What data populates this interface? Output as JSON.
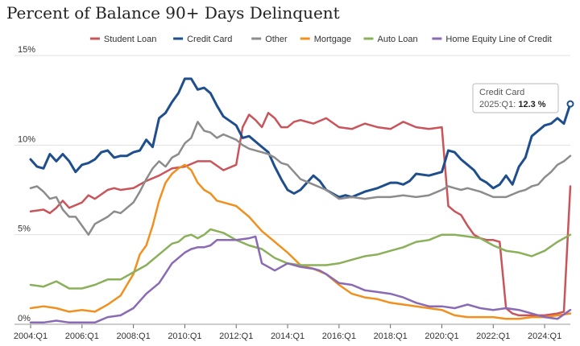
{
  "chart_data": {
    "type": "line",
    "title": "Percent of Balance 90+ Days Delinquent",
    "ylim": [
      0,
      15
    ],
    "y_ticks": [
      {
        "value": 15,
        "label": "15%"
      },
      {
        "value": 10,
        "label": "10%"
      },
      {
        "value": 5,
        "label": "5%"
      },
      {
        "value": 0,
        "label": "0%"
      }
    ],
    "x_start": 2004.0,
    "x_end": 2025.0,
    "x_ticks": [
      {
        "value": 2004,
        "label": "2004:Q1"
      },
      {
        "value": 2006,
        "label": "2006:Q1"
      },
      {
        "value": 2008,
        "label": "2008:Q1"
      },
      {
        "value": 2010,
        "label": "2010:Q1"
      },
      {
        "value": 2012,
        "label": "2012:Q1"
      },
      {
        "value": 2014,
        "label": "2014:Q1"
      },
      {
        "value": 2016,
        "label": "2016:Q1"
      },
      {
        "value": 2018,
        "label": "2018:Q1"
      },
      {
        "value": 2020,
        "label": "2020:Q1"
      },
      {
        "value": 2022,
        "label": "2022:Q1"
      },
      {
        "value": 2024,
        "label": "2024:Q1"
      }
    ],
    "legend_position": "top-right",
    "grid": "horizontal",
    "series": [
      {
        "name": "Student Loan",
        "color": "#c9545a",
        "width": 2.5,
        "x": [
          2004.0,
          2004.5,
          2004.75,
          2005.0,
          2005.25,
          2005.5,
          2006.0,
          2006.25,
          2006.5,
          2007.0,
          2007.25,
          2007.5,
          2008.0,
          2008.5,
          2009.0,
          2009.5,
          2010.0,
          2010.5,
          2011.0,
          2011.5,
          2012.0,
          2012.25,
          2012.5,
          2012.75,
          2013.0,
          2013.25,
          2013.5,
          2013.75,
          2014.0,
          2014.25,
          2014.5,
          2015.0,
          2015.5,
          2016.0,
          2016.5,
          2017.0,
          2017.5,
          2018.0,
          2018.5,
          2019.0,
          2019.5,
          2020.0,
          2020.25,
          2020.5,
          2020.75,
          2021.0,
          2021.25,
          2021.5,
          2021.75,
          2022.0,
          2022.25,
          2022.5,
          2022.75,
          2023.0,
          2023.5,
          2024.0,
          2024.5,
          2024.75,
          2025.0
        ],
        "y": [
          6.3,
          6.4,
          6.2,
          6.5,
          6.9,
          6.5,
          6.8,
          7.2,
          7.0,
          7.5,
          7.6,
          7.5,
          7.6,
          8.0,
          8.3,
          8.7,
          8.8,
          9.1,
          9.1,
          8.6,
          8.9,
          11.0,
          11.7,
          11.4,
          11.0,
          11.8,
          11.5,
          11.0,
          11.0,
          11.3,
          11.4,
          11.2,
          11.5,
          11.0,
          10.9,
          11.2,
          11.0,
          10.9,
          11.3,
          11.0,
          10.9,
          11.0,
          6.6,
          6.3,
          6.1,
          5.5,
          5.0,
          4.8,
          4.7,
          4.7,
          4.6,
          0.9,
          0.6,
          0.5,
          0.5,
          0.5,
          0.6,
          0.7,
          7.7
        ]
      },
      {
        "name": "Credit Card",
        "color": "#1f4e8c",
        "width": 3,
        "x": [
          2004.0,
          2004.25,
          2004.5,
          2004.75,
          2005.0,
          2005.25,
          2005.5,
          2005.75,
          2006.0,
          2006.25,
          2006.5,
          2006.75,
          2007.0,
          2007.25,
          2007.5,
          2007.75,
          2008.0,
          2008.25,
          2008.5,
          2008.75,
          2009.0,
          2009.25,
          2009.5,
          2009.75,
          2010.0,
          2010.25,
          2010.5,
          2010.75,
          2011.0,
          2011.25,
          2011.5,
          2012.0,
          2012.25,
          2012.5,
          2013.0,
          2013.25,
          2013.5,
          2013.75,
          2014.0,
          2014.25,
          2014.5,
          2015.0,
          2015.25,
          2015.5,
          2015.75,
          2016.0,
          2016.25,
          2016.5,
          2017.0,
          2017.5,
          2018.0,
          2018.25,
          2018.5,
          2018.75,
          2019.0,
          2019.5,
          2020.0,
          2020.25,
          2020.5,
          2020.75,
          2021.0,
          2021.25,
          2021.5,
          2021.75,
          2022.0,
          2022.25,
          2022.5,
          2022.75,
          2023.0,
          2023.25,
          2023.5,
          2023.75,
          2024.0,
          2024.25,
          2024.5,
          2024.75,
          2025.0
        ],
        "y": [
          9.2,
          8.8,
          8.7,
          9.5,
          9.1,
          9.5,
          9.1,
          8.5,
          8.9,
          9.0,
          9.2,
          9.6,
          9.7,
          9.3,
          9.4,
          9.4,
          9.6,
          9.7,
          10.3,
          9.9,
          11.5,
          11.8,
          12.4,
          12.9,
          13.7,
          13.7,
          13.1,
          13.2,
          12.9,
          12.2,
          11.6,
          11.1,
          10.4,
          10.5,
          9.9,
          9.6,
          8.8,
          8.1,
          7.5,
          7.3,
          7.5,
          8.3,
          8.0,
          7.5,
          7.3,
          7.1,
          7.2,
          7.1,
          7.4,
          7.6,
          7.9,
          7.9,
          7.8,
          8.0,
          8.4,
          8.3,
          8.5,
          9.7,
          9.6,
          9.2,
          8.9,
          8.6,
          8.1,
          7.9,
          7.6,
          7.8,
          8.3,
          7.8,
          8.8,
          9.3,
          10.5,
          10.8,
          11.1,
          11.2,
          11.5,
          11.2,
          12.3
        ]
      },
      {
        "name": "Other",
        "color": "#8c8c8c",
        "width": 2.5,
        "x": [
          2004.0,
          2004.25,
          2004.5,
          2004.75,
          2005.0,
          2005.25,
          2005.5,
          2005.75,
          2006.0,
          2006.25,
          2006.5,
          2006.75,
          2007.0,
          2007.25,
          2007.5,
          2007.75,
          2008.0,
          2008.25,
          2008.5,
          2008.75,
          2009.0,
          2009.25,
          2009.5,
          2009.75,
          2010.0,
          2010.25,
          2010.5,
          2010.75,
          2011.0,
          2011.25,
          2011.5,
          2012.0,
          2012.25,
          2012.5,
          2013.0,
          2013.25,
          2013.5,
          2013.75,
          2014.0,
          2014.25,
          2014.5,
          2015.0,
          2015.5,
          2016.0,
          2016.5,
          2017.0,
          2017.5,
          2018.0,
          2018.5,
          2019.0,
          2019.5,
          2020.0,
          2020.25,
          2020.5,
          2020.75,
          2021.0,
          2021.5,
          2022.0,
          2022.5,
          2023.0,
          2023.25,
          2023.5,
          2023.75,
          2024.0,
          2024.25,
          2024.5,
          2024.75,
          2025.0
        ],
        "y": [
          7.6,
          7.7,
          7.4,
          7.0,
          7.1,
          6.4,
          6.0,
          6.0,
          5.5,
          5.0,
          5.6,
          5.8,
          6.0,
          6.3,
          6.2,
          6.5,
          6.8,
          7.4,
          8.1,
          8.7,
          9.1,
          8.8,
          9.3,
          9.5,
          10.1,
          10.4,
          11.3,
          10.8,
          10.7,
          10.4,
          10.6,
          10.3,
          10.0,
          9.8,
          9.6,
          9.5,
          9.3,
          9.0,
          8.9,
          8.5,
          8.1,
          7.8,
          7.5,
          7.0,
          7.1,
          7.0,
          7.1,
          7.1,
          7.2,
          7.1,
          7.2,
          7.5,
          7.7,
          7.6,
          7.5,
          7.6,
          7.4,
          7.1,
          7.1,
          7.4,
          7.5,
          7.7,
          7.8,
          8.2,
          8.5,
          8.9,
          9.1,
          9.4
        ]
      },
      {
        "name": "Mortgage",
        "color": "#f0901e",
        "width": 2.5,
        "x": [
          2004.0,
          2004.5,
          2005.0,
          2005.5,
          2006.0,
          2006.5,
          2007.0,
          2007.5,
          2007.75,
          2008.0,
          2008.25,
          2008.5,
          2008.75,
          2009.0,
          2009.25,
          2009.5,
          2009.75,
          2010.0,
          2010.25,
          2010.5,
          2010.75,
          2011.0,
          2011.25,
          2011.5,
          2012.0,
          2012.5,
          2013.0,
          2013.5,
          2014.0,
          2014.5,
          2015.0,
          2015.5,
          2016.0,
          2016.5,
          2017.0,
          2017.5,
          2018.0,
          2018.5,
          2019.0,
          2019.5,
          2020.0,
          2020.5,
          2021.0,
          2021.5,
          2022.0,
          2022.5,
          2023.0,
          2023.5,
          2024.0,
          2024.5,
          2025.0
        ],
        "y": [
          0.9,
          1.0,
          0.9,
          0.7,
          0.8,
          0.7,
          1.1,
          1.6,
          2.2,
          2.8,
          3.9,
          4.4,
          5.5,
          6.9,
          7.9,
          8.4,
          8.7,
          8.9,
          8.6,
          7.9,
          7.5,
          7.3,
          6.9,
          6.8,
          6.6,
          6.0,
          5.2,
          4.6,
          4.0,
          3.3,
          3.1,
          2.8,
          2.2,
          1.7,
          1.5,
          1.4,
          1.2,
          1.1,
          1.0,
          0.9,
          0.8,
          0.5,
          0.4,
          0.4,
          0.4,
          0.3,
          0.3,
          0.4,
          0.4,
          0.5,
          0.6
        ]
      },
      {
        "name": "Auto Loan",
        "color": "#8ab05a",
        "width": 2.5,
        "x": [
          2004.0,
          2004.5,
          2005.0,
          2005.5,
          2006.0,
          2006.5,
          2007.0,
          2007.5,
          2008.0,
          2008.5,
          2009.0,
          2009.5,
          2009.75,
          2010.0,
          2010.25,
          2010.5,
          2010.75,
          2011.0,
          2011.25,
          2011.5,
          2012.0,
          2012.5,
          2013.0,
          2013.5,
          2014.0,
          2014.5,
          2015.0,
          2015.5,
          2016.0,
          2016.5,
          2017.0,
          2017.5,
          2018.0,
          2018.5,
          2019.0,
          2019.5,
          2020.0,
          2020.5,
          2021.0,
          2021.5,
          2022.0,
          2022.5,
          2023.0,
          2023.5,
          2024.0,
          2024.5,
          2025.0
        ],
        "y": [
          2.2,
          2.1,
          2.4,
          2.0,
          2.0,
          2.2,
          2.5,
          2.5,
          2.9,
          3.3,
          3.9,
          4.5,
          4.6,
          4.9,
          5.0,
          4.8,
          5.0,
          5.3,
          5.2,
          5.1,
          4.7,
          4.4,
          4.2,
          3.7,
          3.4,
          3.3,
          3.3,
          3.3,
          3.4,
          3.6,
          3.8,
          3.9,
          4.1,
          4.3,
          4.6,
          4.7,
          5.0,
          5.0,
          4.9,
          4.8,
          4.4,
          4.1,
          4.0,
          3.8,
          4.1,
          4.6,
          5.0
        ]
      },
      {
        "name": "Home Equity Line of Credit",
        "color": "#8a6ab4",
        "width": 2.5,
        "x": [
          2004.0,
          2004.5,
          2005.0,
          2005.5,
          2006.0,
          2006.5,
          2007.0,
          2007.5,
          2008.0,
          2008.5,
          2009.0,
          2009.5,
          2009.75,
          2010.0,
          2010.25,
          2010.5,
          2010.75,
          2011.0,
          2011.25,
          2011.5,
          2012.0,
          2012.5,
          2012.75,
          2013.0,
          2013.25,
          2013.5,
          2014.0,
          2014.5,
          2015.0,
          2015.25,
          2015.5,
          2016.0,
          2016.5,
          2017.0,
          2017.5,
          2018.0,
          2018.5,
          2019.0,
          2019.5,
          2020.0,
          2020.5,
          2021.0,
          2021.5,
          2022.0,
          2022.5,
          2023.0,
          2023.5,
          2024.0,
          2024.5,
          2025.0
        ],
        "y": [
          0.1,
          0.1,
          0.2,
          0.1,
          0.1,
          0.1,
          0.4,
          0.5,
          0.9,
          1.7,
          2.3,
          3.4,
          3.7,
          4.0,
          4.2,
          4.3,
          4.3,
          4.4,
          4.7,
          4.7,
          4.7,
          4.8,
          4.9,
          3.4,
          3.2,
          3.0,
          3.4,
          3.2,
          3.1,
          3.0,
          2.8,
          2.3,
          2.2,
          1.9,
          1.8,
          1.7,
          1.5,
          1.2,
          1.0,
          1.0,
          0.9,
          1.1,
          0.9,
          0.8,
          0.9,
          0.8,
          0.6,
          0.4,
          0.3,
          0.8
        ]
      }
    ],
    "tooltip": {
      "series": "Credit Card",
      "period": "2025:Q1",
      "value": "12.3 %"
    }
  }
}
